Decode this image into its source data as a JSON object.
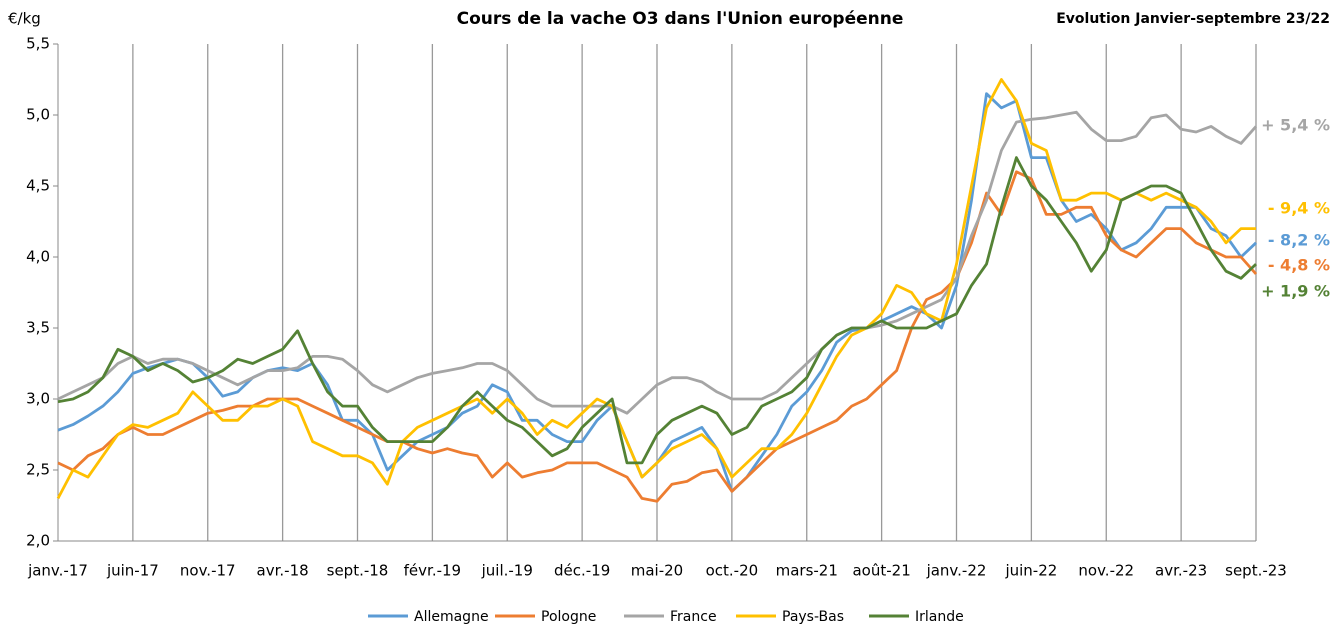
{
  "chart_data": {
    "type": "line",
    "title": "Cours de la vache O3 dans l'Union européenne",
    "subtitle": "Evolution Janvier-septembre 23/22",
    "y_label": "€/kg",
    "categories": [
      "janv.-17",
      null,
      null,
      null,
      null,
      "juin-17",
      null,
      null,
      null,
      null,
      "nov.-17",
      null,
      null,
      null,
      null,
      "avr.-18",
      null,
      null,
      null,
      null,
      "sept.-18",
      null,
      null,
      null,
      null,
      "févr.-19",
      null,
      null,
      null,
      null,
      "juil.-19",
      null,
      null,
      null,
      null,
      "déc.-19",
      null,
      null,
      null,
      null,
      "mai-20",
      null,
      null,
      null,
      null,
      "oct.-20",
      null,
      null,
      null,
      null,
      "mars-21",
      null,
      null,
      null,
      null,
      "août-21",
      null,
      null,
      null,
      null,
      "janv.-22",
      null,
      null,
      null,
      null,
      "juin-22",
      null,
      null,
      null,
      null,
      "nov.-22",
      null,
      null,
      null,
      null,
      "avr.-23",
      null,
      null,
      null,
      null,
      "sept.-23"
    ],
    "ylim": [
      2.0,
      5.5
    ],
    "yticks": [
      {
        "value": 2.0,
        "label": "2,0"
      },
      {
        "value": 2.5,
        "label": "2,5"
      },
      {
        "value": 3.0,
        "label": "3,0"
      },
      {
        "value": 3.5,
        "label": "3,5"
      },
      {
        "value": 4.0,
        "label": "4,0"
      },
      {
        "value": 4.5,
        "label": "4,5"
      },
      {
        "value": 5.0,
        "label": "5,0"
      },
      {
        "value": 5.5,
        "label": "5,5"
      }
    ],
    "grid": "x",
    "legend": "bottom",
    "series": [
      {
        "name": "Allemagne",
        "color": "#5b9bd5",
        "values": [
          2.78,
          2.82,
          2.88,
          2.95,
          3.05,
          3.18,
          3.22,
          3.25,
          3.28,
          3.25,
          3.15,
          3.02,
          3.05,
          3.15,
          3.2,
          3.22,
          3.2,
          3.25,
          3.1,
          2.85,
          2.85,
          2.75,
          2.5,
          2.6,
          2.7,
          2.75,
          2.8,
          2.9,
          2.95,
          3.1,
          3.05,
          2.85,
          2.85,
          2.75,
          2.7,
          2.7,
          2.85,
          2.95,
          2.7,
          2.45,
          2.55,
          2.7,
          2.75,
          2.8,
          2.65,
          2.35,
          2.45,
          2.6,
          2.75,
          2.95,
          3.05,
          3.2,
          3.4,
          3.48,
          3.5,
          3.55,
          3.6,
          3.65,
          3.6,
          3.5,
          3.8,
          4.4,
          5.15,
          5.05,
          5.1,
          4.7,
          4.7,
          4.4,
          4.25,
          4.3,
          4.2,
          4.05,
          4.1,
          4.2,
          4.35,
          4.35,
          4.35,
          4.2,
          4.15,
          4.0,
          4.1
        ]
      },
      {
        "name": "Pologne",
        "color": "#ed7d31",
        "values": [
          2.55,
          2.5,
          2.6,
          2.65,
          2.75,
          2.8,
          2.75,
          2.75,
          2.8,
          2.85,
          2.9,
          2.92,
          2.95,
          2.95,
          3.0,
          3.0,
          3.0,
          2.95,
          2.9,
          2.85,
          2.8,
          2.75,
          2.7,
          2.7,
          2.65,
          2.62,
          2.65,
          2.62,
          2.6,
          2.45,
          2.55,
          2.45,
          2.48,
          2.5,
          2.55,
          2.55,
          2.55,
          2.5,
          2.45,
          2.3,
          2.28,
          2.4,
          2.42,
          2.48,
          2.5,
          2.35,
          2.45,
          2.55,
          2.65,
          2.7,
          2.75,
          2.8,
          2.85,
          2.95,
          3.0,
          3.1,
          3.2,
          3.5,
          3.7,
          3.75,
          3.85,
          4.1,
          4.45,
          4.3,
          4.6,
          4.55,
          4.3,
          4.3,
          4.35,
          4.35,
          4.15,
          4.05,
          4.0,
          4.1,
          4.2,
          4.2,
          4.1,
          4.05,
          4.0,
          4.0,
          3.88
        ]
      },
      {
        "name": "France",
        "color": "#a5a5a5",
        "values": [
          3.0,
          3.05,
          3.1,
          3.15,
          3.25,
          3.3,
          3.25,
          3.28,
          3.28,
          3.25,
          3.2,
          3.15,
          3.1,
          3.15,
          3.2,
          3.2,
          3.22,
          3.3,
          3.3,
          3.28,
          3.2,
          3.1,
          3.05,
          3.1,
          3.15,
          3.18,
          3.2,
          3.22,
          3.25,
          3.25,
          3.2,
          3.1,
          3.0,
          2.95,
          2.95,
          2.95,
          2.95,
          2.95,
          2.9,
          3.0,
          3.1,
          3.15,
          3.15,
          3.12,
          3.05,
          3.0,
          3.0,
          3.0,
          3.05,
          3.15,
          3.25,
          3.35,
          3.45,
          3.5,
          3.5,
          3.52,
          3.55,
          3.6,
          3.65,
          3.7,
          3.85,
          4.15,
          4.4,
          4.75,
          4.95,
          4.97,
          4.98,
          5.0,
          5.02,
          4.9,
          4.82,
          4.82,
          4.85,
          4.98,
          5.0,
          4.9,
          4.88,
          4.92,
          4.85,
          4.8,
          4.92
        ]
      },
      {
        "name": "Pays-Bas",
        "color": "#ffc000",
        "values": [
          2.3,
          2.5,
          2.45,
          2.6,
          2.75,
          2.82,
          2.8,
          2.85,
          2.9,
          3.05,
          2.95,
          2.85,
          2.85,
          2.95,
          2.95,
          3.0,
          2.95,
          2.7,
          2.65,
          2.6,
          2.6,
          2.55,
          2.4,
          2.7,
          2.8,
          2.85,
          2.9,
          2.95,
          3.0,
          2.9,
          3.0,
          2.9,
          2.75,
          2.85,
          2.8,
          2.9,
          3.0,
          2.95,
          2.7,
          2.45,
          2.55,
          2.65,
          2.7,
          2.75,
          2.65,
          2.45,
          2.55,
          2.65,
          2.65,
          2.75,
          2.9,
          3.1,
          3.3,
          3.45,
          3.5,
          3.6,
          3.8,
          3.75,
          3.6,
          3.55,
          3.95,
          4.5,
          5.05,
          5.25,
          5.1,
          4.8,
          4.75,
          4.4,
          4.4,
          4.45,
          4.45,
          4.4,
          4.45,
          4.4,
          4.45,
          4.4,
          4.35,
          4.25,
          4.1,
          4.2,
          4.2
        ]
      },
      {
        "name": "Irlande",
        "color": "#548235",
        "values": [
          2.98,
          3.0,
          3.05,
          3.15,
          3.35,
          3.3,
          3.2,
          3.25,
          3.2,
          3.12,
          3.15,
          3.2,
          3.28,
          3.25,
          3.3,
          3.35,
          3.48,
          3.25,
          3.05,
          2.95,
          2.95,
          2.8,
          2.7,
          2.7,
          2.7,
          2.7,
          2.8,
          2.95,
          3.05,
          2.95,
          2.85,
          2.8,
          2.7,
          2.6,
          2.65,
          2.8,
          2.9,
          3.0,
          2.55,
          2.55,
          2.75,
          2.85,
          2.9,
          2.95,
          2.9,
          2.75,
          2.8,
          2.95,
          3.0,
          3.05,
          3.15,
          3.35,
          3.45,
          3.5,
          3.5,
          3.55,
          3.5,
          3.5,
          3.5,
          3.55,
          3.6,
          3.8,
          3.95,
          4.35,
          4.7,
          4.5,
          4.4,
          4.25,
          4.1,
          3.9,
          4.05,
          4.4,
          4.45,
          4.5,
          4.5,
          4.45,
          4.25,
          4.05,
          3.9,
          3.85,
          3.95
        ]
      }
    ],
    "annotations": [
      {
        "text": "+ 5,4 %",
        "color": "#a5a5a5"
      },
      {
        "text": "- 9,4 %",
        "color": "#ffc000"
      },
      {
        "text": "- 8,2 %",
        "color": "#5b9bd5"
      },
      {
        "text": "- 4,8 %",
        "color": "#ed7d31"
      },
      {
        "text": "+ 1,9 %",
        "color": "#548235"
      }
    ]
  }
}
